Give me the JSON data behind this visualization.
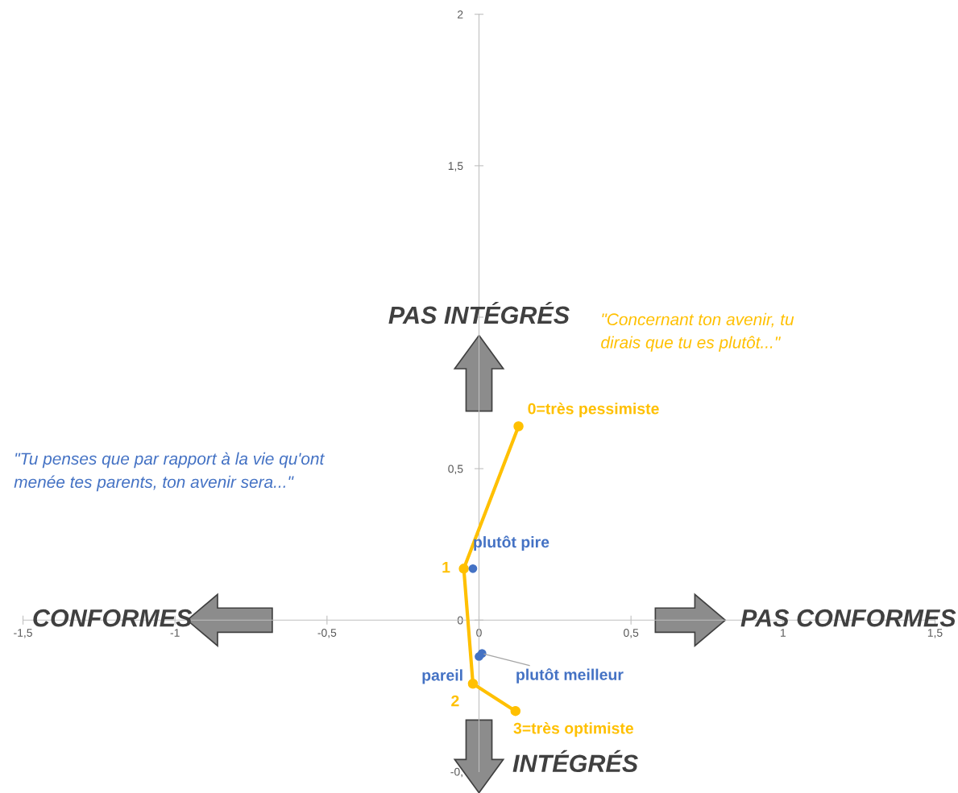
{
  "chart_data": {
    "type": "scatter",
    "xlim": [
      -1.5,
      1.5
    ],
    "ylim": [
      -0.5,
      2
    ],
    "xticks": [
      {
        "value": -1.5,
        "label": "-1,5"
      },
      -1,
      {
        "value": -0.5,
        "label": "-0,5"
      },
      0,
      {
        "value": 0.5,
        "label": "0,5"
      },
      1,
      {
        "value": 1.5,
        "label": "1,5"
      }
    ],
    "yticks": [
      {
        "value": -0.5,
        "label": "-0,"
      },
      0,
      {
        "value": 0.5,
        "label": "0,5"
      },
      {
        "value": 1,
        "label": null
      },
      {
        "value": 1.5,
        "label": "1,5"
      },
      2
    ],
    "grid": false,
    "legend": false,
    "marker": "circle",
    "series": [
      {
        "type": "line",
        "color": "#ffc000",
        "x": [
          0.13,
          -0.05,
          -0.02,
          0.12
        ],
        "values": [
          0.64,
          0.17,
          -0.21,
          -0.3
        ]
      },
      {
        "color": "#4472c4",
        "x": [
          -0.02,
          0.0,
          0.01
        ],
        "values": [
          0.17,
          -0.12,
          -0.11
        ]
      }
    ],
    "annotations": [
      {
        "text": "0=très pessimiste",
        "x": 0.13,
        "y": 0.64
      },
      {
        "text": "1",
        "x": -0.05,
        "y": 0.17
      },
      {
        "text": "2",
        "x": -0.02,
        "y": -0.21
      },
      {
        "text": "3=très optimiste",
        "x": 0.12,
        "y": -0.3
      },
      {
        "text": "plutôt pire",
        "x": -0.02,
        "y": 0.17
      },
      {
        "text": "pareil",
        "x": 0.0,
        "y": -0.12
      },
      {
        "text": "plutôt meilleur",
        "x": 0.01,
        "y": -0.11
      },
      "PAS INTÉGRÉS",
      "INTÉGRÉS",
      "CONFORMES",
      "PAS CONFORMES",
      "\"Concernant ton avenir, tu\ndirais que tu es plutôt...\"",
      "\"Tu penses que par rapport à la vie qu'ont\nmenée tes parents, ton avenir sera...\""
    ]
  }
}
